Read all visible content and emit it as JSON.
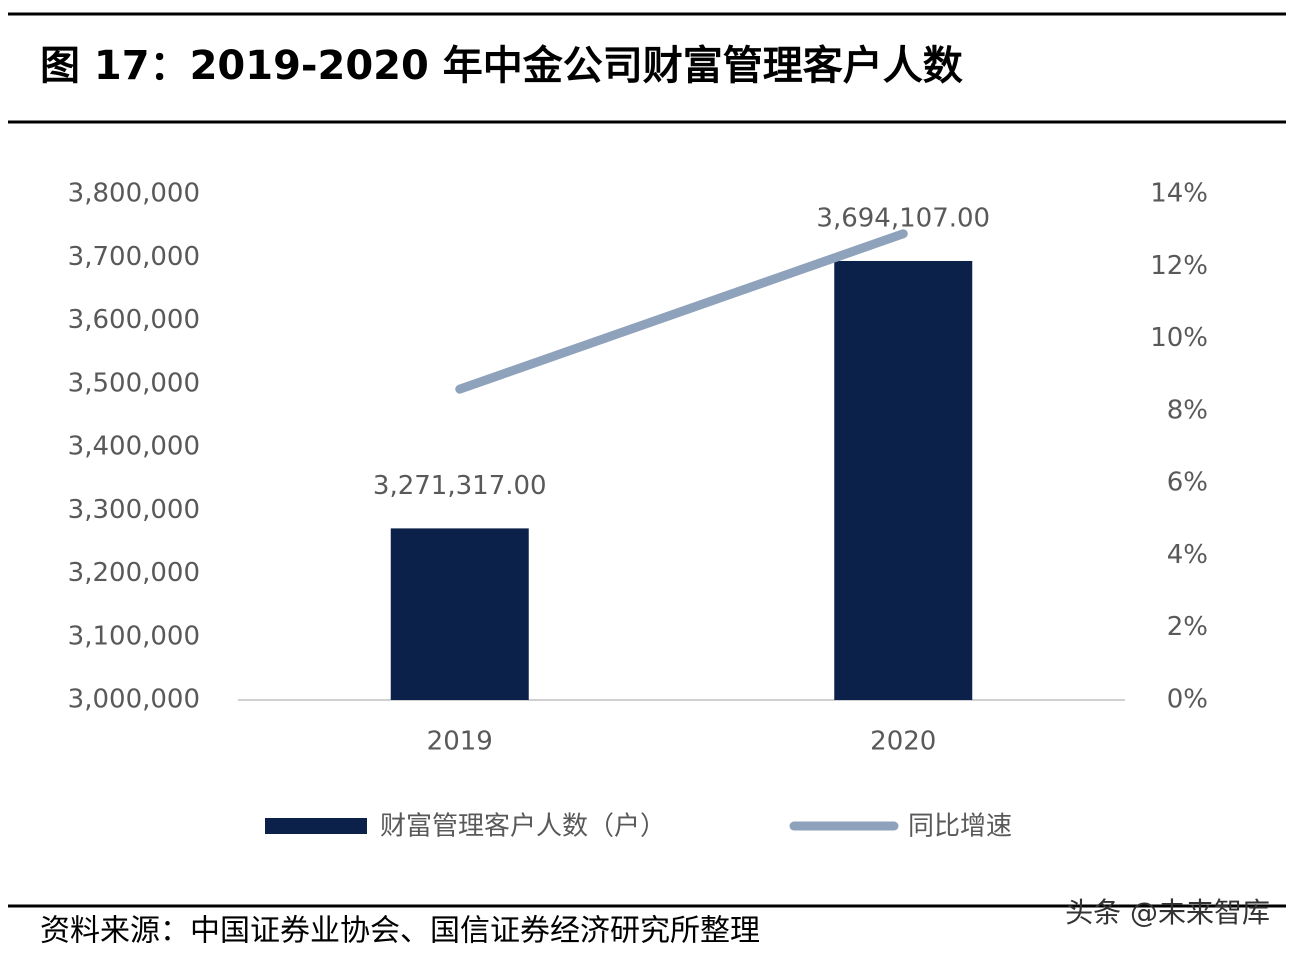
{
  "chart_data": {
    "type": "bar",
    "title": "图 17：2019-2020 年中金公司财富管理客户人数",
    "categories": [
      "2019",
      "2020"
    ],
    "series": [
      {
        "name": "财富管理客户人数（户）",
        "type": "bar",
        "color": "#0b2149",
        "values": [
          3271317,
          3694107
        ],
        "value_labels": [
          "3,271,317.00",
          "3,694,107.00"
        ]
      },
      {
        "name": "同比增速",
        "type": "line",
        "axis": "y2",
        "color": "#8ea2bb",
        "values": [
          8.6,
          12.9
        ]
      }
    ],
    "ylim": [
      3000000,
      3800000
    ],
    "yticks": [
      {
        "value": 3000000,
        "label": "3,000,000"
      },
      {
        "value": 3100000,
        "label": "3,100,000"
      },
      {
        "value": 3200000,
        "label": "3,200,000"
      },
      {
        "value": 3300000,
        "label": "3,300,000"
      },
      {
        "value": 3400000,
        "label": "3,400,000"
      },
      {
        "value": 3500000,
        "label": "3,500,000"
      },
      {
        "value": 3600000,
        "label": "3,600,000"
      },
      {
        "value": 3700000,
        "label": "3,700,000"
      },
      {
        "value": 3800000,
        "label": "3,800,000"
      }
    ],
    "y2lim": [
      0,
      14
    ],
    "y2ticks": [
      {
        "value": 0,
        "label": "0%"
      },
      {
        "value": 2,
        "label": "2%"
      },
      {
        "value": 4,
        "label": "4%"
      },
      {
        "value": 6,
        "label": "6%"
      },
      {
        "value": 8,
        "label": "8%"
      },
      {
        "value": 10,
        "label": "10%"
      },
      {
        "value": 12,
        "label": "12%"
      },
      {
        "value": 14,
        "label": "14%"
      }
    ],
    "grid": false
  },
  "source": "资料来源：中国证券业协会、国信证券经济研究所整理",
  "watermark": "头条 @未来智库"
}
